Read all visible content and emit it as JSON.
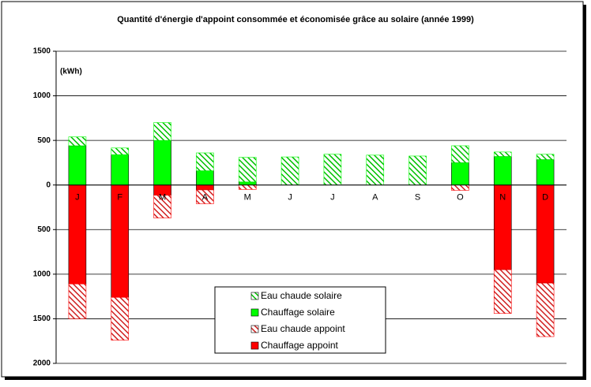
{
  "chart_data": {
    "type": "stacked_bar",
    "title": "Quantité d'énergie d'appoint consommée et économisée grâce au solaire (année 1999)",
    "y_label": "(kWh)",
    "categories": [
      "J",
      "F",
      "M",
      "A",
      "M",
      "J",
      "J",
      "A",
      "S",
      "O",
      "N",
      "D"
    ],
    "series": [
      {
        "name": "Chauffage appoint",
        "color": "#ff0000",
        "pattern": "solid",
        "values": [
          -1110,
          -1260,
          -115,
          -55,
          0,
          0,
          0,
          0,
          0,
          0,
          -950,
          -1100
        ]
      },
      {
        "name": "Eau chaude appoint",
        "color": "#ff0000",
        "pattern": "hatched",
        "values": [
          -390,
          -480,
          -255,
          -155,
          -50,
          0,
          0,
          0,
          0,
          -60,
          -490,
          -600
        ]
      },
      {
        "name": "Chauffage solaire",
        "color": "#00ff00",
        "pattern": "solid",
        "values": [
          440,
          340,
          500,
          160,
          35,
          0,
          0,
          0,
          0,
          250,
          320,
          285
        ]
      },
      {
        "name": "Eau chaude solaire",
        "color": "#00ff00",
        "pattern": "hatched",
        "values": [
          100,
          75,
          200,
          200,
          275,
          315,
          345,
          335,
          325,
          190,
          50,
          60
        ]
      }
    ],
    "ylim": [
      -2000,
      1500
    ],
    "yticks": [
      1500,
      1000,
      500,
      0,
      {
        "value": -500,
        "label": "500"
      },
      {
        "value": -1000,
        "label": "1000"
      },
      {
        "value": -1500,
        "label": "1500"
      },
      {
        "value": -2000,
        "label": "2000"
      }
    ],
    "grid": true,
    "legend": "bottom"
  }
}
